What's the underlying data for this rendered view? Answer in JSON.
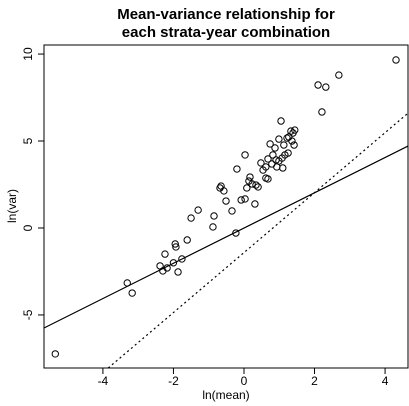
{
  "chart_data": {
    "type": "scatter",
    "title": [
      "Mean-variance relationship for",
      "each strata-year combination"
    ],
    "x_label": "ln(mean)",
    "y_label": "ln(var)",
    "xlim": [
      -5.67,
      4.65
    ],
    "ylim": [
      -8.05,
      10.52
    ],
    "xticks": [
      -4,
      -2,
      0,
      2,
      4
    ],
    "yticks": [
      -5,
      0,
      5,
      10
    ],
    "color": "#000000",
    "x": [
      -5.35,
      -3.31,
      -3.17,
      -2.38,
      -2.3,
      -2.18,
      -2.24,
      -1.93,
      -1.95,
      -2.0,
      -1.87,
      -1.76,
      -1.61,
      -1.5,
      -1.3,
      -0.88,
      -0.85,
      -0.68,
      -0.65,
      -0.57,
      -0.51,
      -0.34,
      -0.23,
      -0.2,
      -0.08,
      0.03,
      0.03,
      0.08,
      0.14,
      0.17,
      0.23,
      0.31,
      0.34,
      0.4,
      0.48,
      0.54,
      0.62,
      0.62,
      0.68,
      0.68,
      0.74,
      0.79,
      0.82,
      0.88,
      0.91,
      0.93,
      0.99,
      0.99,
      1.05,
      1.08,
      1.1,
      1.13,
      1.16,
      1.22,
      1.25,
      1.27,
      1.33,
      1.36,
      1.39,
      1.42,
      1.44,
      2.1,
      2.21,
      2.32,
      2.69,
      4.31
    ],
    "y": [
      -7.24,
      -3.16,
      -3.74,
      -2.18,
      -2.47,
      -2.3,
      -1.5,
      -1.09,
      -0.92,
      -2.0,
      -2.53,
      -1.78,
      -0.69,
      0.57,
      1.03,
      0.06,
      0.69,
      2.3,
      2.41,
      2.13,
      1.55,
      0.98,
      -0.29,
      3.39,
      1.61,
      1.67,
      4.2,
      2.3,
      2.7,
      2.93,
      2.53,
      1.38,
      2.47,
      2.36,
      3.74,
      3.33,
      2.87,
      3.51,
      3.97,
      2.82,
      4.83,
      3.68,
      4.2,
      4.6,
      3.91,
      3.51,
      5.11,
      3.85,
      6.15,
      4.02,
      3.45,
      4.77,
      4.2,
      5.17,
      4.31,
      5.23,
      5.57,
      5.0,
      5.46,
      4.77,
      5.63,
      8.22,
      6.67,
      8.1,
      8.79,
      9.66
    ],
    "lines": [
      {
        "style": "solid",
        "x": [
          -5.67,
          4.65
        ],
        "y": [
          -5.75,
          4.71
        ]
      },
      {
        "style": "dotted",
        "x": [
          -3.85,
          4.65
        ],
        "y": [
          -8.05,
          6.6
        ]
      }
    ]
  }
}
